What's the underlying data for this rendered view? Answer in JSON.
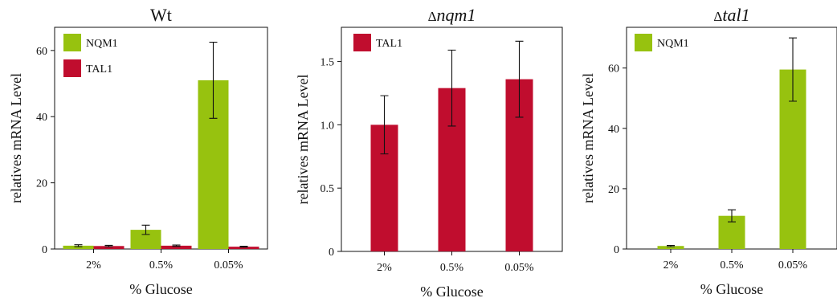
{
  "chart_data": [
    {
      "type": "bar",
      "title": "Wt",
      "title_italic": false,
      "xlabel": "% Glucose",
      "ylabel": "relatives mRNA Level",
      "categories": [
        "2%",
        "0.5%",
        "0.05%"
      ],
      "ylim": [
        0,
        67
      ],
      "yticks": [
        0,
        20,
        40,
        60
      ],
      "ytick_labels": [
        "0",
        "20",
        "40",
        "60"
      ],
      "legend_position": "top-left",
      "grid": false,
      "series": [
        {
          "name": "NQM1",
          "color": "#97c20f",
          "values": [
            1.0,
            5.8,
            51.0
          ],
          "errors": [
            0.3,
            1.4,
            11.5
          ]
        },
        {
          "name": "TAL1",
          "color": "#c00d2e",
          "values": [
            0.9,
            1.0,
            0.7
          ],
          "errors": [
            0.2,
            0.2,
            0.15
          ]
        }
      ]
    },
    {
      "type": "bar",
      "title": "nqm1",
      "title_prefix": "Δ",
      "title_italic": true,
      "xlabel": "% Glucose",
      "ylabel": "relatives mRNA Level",
      "categories": [
        "2%",
        "0.5%",
        "0.05%"
      ],
      "ylim": [
        0,
        1.77
      ],
      "yticks": [
        0,
        0.5,
        1.0,
        1.5
      ],
      "ytick_labels": [
        "0",
        "0.5",
        "1.0",
        "1.5"
      ],
      "legend_position": "top-left",
      "grid": false,
      "series": [
        {
          "name": "TAL1",
          "color": "#c00d2e",
          "values": [
            1.0,
            1.29,
            1.36
          ],
          "errors": [
            0.23,
            0.3,
            0.3
          ]
        }
      ]
    },
    {
      "type": "bar",
      "title": "tal1",
      "title_prefix": "Δ",
      "title_italic": true,
      "xlabel": "% Glucose",
      "ylabel": "relatives mRNA Level",
      "categories": [
        "2%",
        "0.5%",
        "0.05%"
      ],
      "ylim": [
        0,
        73.5
      ],
      "yticks": [
        0,
        20,
        40,
        60
      ],
      "ytick_labels": [
        "0",
        "20",
        "40",
        "60"
      ],
      "legend_position": "top-left",
      "grid": false,
      "series": [
        {
          "name": "NQM1",
          "color": "#97c20f",
          "values": [
            1.0,
            11.0,
            59.5
          ],
          "errors": [
            0.2,
            2.0,
            10.5
          ]
        }
      ]
    }
  ]
}
